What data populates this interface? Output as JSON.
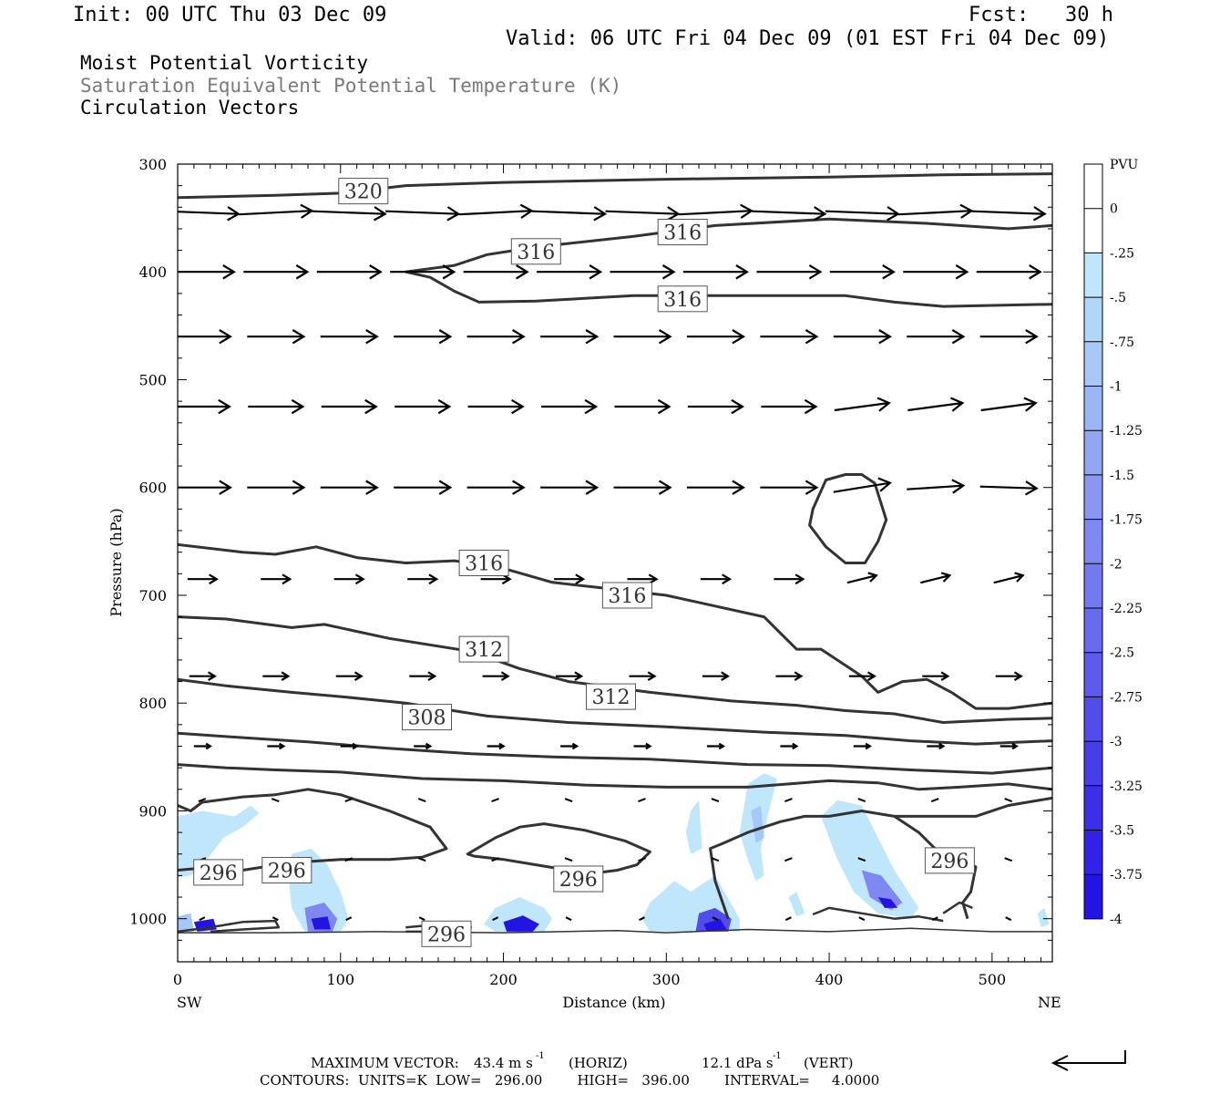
{
  "header": {
    "init": "Init: 00 UTC Thu 03 Dec 09",
    "fcst": "Fcst:   30 h",
    "valid": "Valid: 06 UTC Fri 04 Dec 09 (01 EST Fri 04 Dec 09)",
    "field1": "Moist Potential Vorticity",
    "field2": "Saturation Equivalent Potential Temperature (K)",
    "field3": "Circulation Vectors"
  },
  "footer": {
    "max_vector_label": "MAXIMUM VECTOR:",
    "max_vector_horiz": "43.4 m s",
    "horiz_tag": "(HORIZ)",
    "max_vector_vert": "12.1 dPa s",
    "vert_tag": "(VERT)",
    "exp": "-1",
    "contours": "CONTOURS:  UNITS=K  LOW=   296.00        HIGH=   396.00        INTERVAL=     4.0000"
  },
  "chart_data": {
    "type": "cross-section",
    "ylabel": "Pressure (hPa)",
    "xlabel": "Distance (km)",
    "x_left_label": "SW",
    "x_right_label": "NE",
    "xlim": [
      0,
      537
    ],
    "ylim": [
      1040,
      300
    ],
    "y_ticks": [
      300,
      400,
      500,
      600,
      700,
      800,
      900,
      1000
    ],
    "x_ticks": [
      0,
      100,
      200,
      300,
      400,
      500
    ],
    "colorbar": {
      "unit": "PVU",
      "labels": [
        "0",
        "-.25",
        "-.5",
        "-.75",
        "-1",
        "-1.25",
        "-1.5",
        "-1.75",
        "-2",
        "-2.25",
        "-2.5",
        "-2.75",
        "-3",
        "-3.25",
        "-3.5",
        "-3.75",
        "-4"
      ],
      "colors": [
        "#ffffff",
        "#ffffff",
        "#bfe6fa",
        "#b0d6f8",
        "#a7c7f6",
        "#9cb6f5",
        "#92a6f3",
        "#8997f2",
        "#7f88f1",
        "#7379ef",
        "#686aee",
        "#5d5bec",
        "#524ceb",
        "#473ee9",
        "#3d2fe8",
        "#3221e6",
        "#2414e4"
      ]
    },
    "contour_interval_K": 4,
    "contour_labels": [
      {
        "text": "320",
        "x": 114,
        "p": 325
      },
      {
        "text": "316",
        "x": 310,
        "p": 363
      },
      {
        "text": "316",
        "x": 220,
        "p": 381
      },
      {
        "text": "316",
        "x": 310,
        "p": 425
      },
      {
        "text": "316",
        "x": 188,
        "p": 670
      },
      {
        "text": "316",
        "x": 276,
        "p": 700
      },
      {
        "text": "312",
        "x": 188,
        "p": 750
      },
      {
        "text": "312",
        "x": 266,
        "p": 794
      },
      {
        "text": "308",
        "x": 153,
        "p": 813
      },
      {
        "text": "296",
        "x": 25,
        "p": 957
      },
      {
        "text": "296",
        "x": 67,
        "p": 955
      },
      {
        "text": "296",
        "x": 246,
        "p": 963
      },
      {
        "text": "296",
        "x": 474,
        "p": 946
      },
      {
        "text": "296",
        "x": 165,
        "p": 1014
      }
    ],
    "vector_rows_hPa": [
      345,
      400,
      460,
      525,
      600,
      685,
      775,
      840,
      890,
      945,
      1000
    ],
    "vector_columns_km": [
      15,
      60,
      105,
      150,
      195,
      240,
      285,
      330,
      375,
      420,
      465,
      510
    ],
    "max_vector_horiz_ms": 43.4,
    "max_vector_vert_dPas": 12.1
  }
}
